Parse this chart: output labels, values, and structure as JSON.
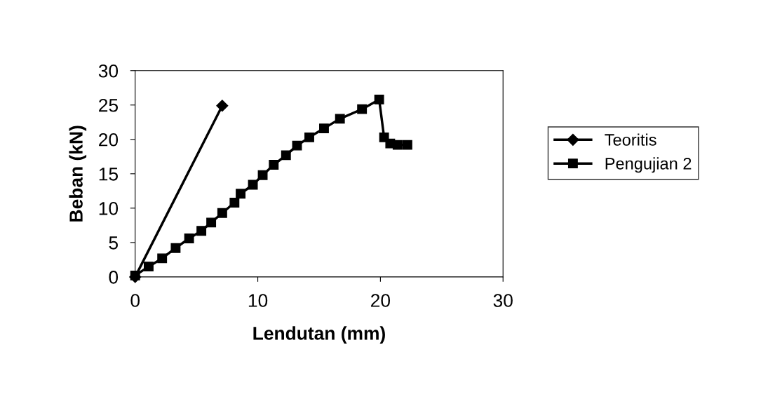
{
  "chart_data": {
    "type": "line",
    "xlabel": "Lendutan (mm)",
    "ylabel": "Beban (kN)",
    "xlim": [
      0,
      30
    ],
    "xticks": [
      0,
      10,
      20,
      30
    ],
    "ylim": [
      0,
      30
    ],
    "yticks": [
      0,
      5,
      10,
      15,
      20,
      25,
      30
    ],
    "grid": false,
    "legend": "right",
    "line_style": "solid",
    "series": [
      {
        "name": "Teoritis",
        "color": "#000000",
        "marker": "diamond",
        "x": [
          0,
          7.1
        ],
        "values": [
          0,
          24.9
        ]
      },
      {
        "name": "Pengujian 2",
        "color": "#000000",
        "marker": "square",
        "x": [
          0,
          1.1,
          2.2,
          3.3,
          4.4,
          5.4,
          6.2,
          7.1,
          8.1,
          8.6,
          9.6,
          10.4,
          11.3,
          12.3,
          13.2,
          14.2,
          15.4,
          16.7,
          18.5,
          19.9,
          20.3,
          20.8,
          21.4,
          22.2
        ],
        "values": [
          0.2,
          1.5,
          2.7,
          4.2,
          5.6,
          6.7,
          7.9,
          9.3,
          10.8,
          12.1,
          13.4,
          14.8,
          16.3,
          17.7,
          19.1,
          20.3,
          21.6,
          23.0,
          24.4,
          25.8,
          20.3,
          19.4,
          19.2,
          19.2
        ]
      }
    ]
  }
}
